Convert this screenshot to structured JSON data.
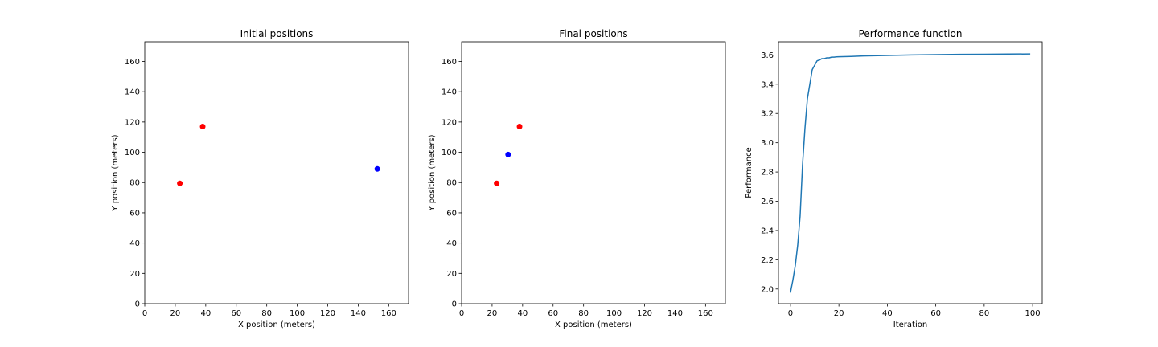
{
  "chart_data": [
    {
      "type": "scatter",
      "title": "Initial positions",
      "xlabel": "X position (meters)",
      "ylabel": "Y position (meters)",
      "xlim": [
        0,
        173
      ],
      "ylim": [
        0,
        173
      ],
      "xticks": [
        0,
        20,
        40,
        60,
        80,
        100,
        120,
        140,
        160
      ],
      "yticks": [
        0,
        20,
        40,
        60,
        80,
        100,
        120,
        140,
        160
      ],
      "grid": false,
      "series": [
        {
          "color": "#ff0000",
          "points": [
            [
              23,
              79.5
            ],
            [
              38,
              117
            ]
          ]
        },
        {
          "color": "#0000ff",
          "points": [
            [
              152.5,
              89
            ]
          ]
        }
      ]
    },
    {
      "type": "scatter",
      "title": "Final positions",
      "xlabel": "X position (meters)",
      "ylabel": "Y position (meters)",
      "xlim": [
        0,
        173
      ],
      "ylim": [
        0,
        173
      ],
      "xticks": [
        0,
        20,
        40,
        60,
        80,
        100,
        120,
        140,
        160
      ],
      "yticks": [
        0,
        20,
        40,
        60,
        80,
        100,
        120,
        140,
        160
      ],
      "grid": false,
      "series": [
        {
          "color": "#ff0000",
          "points": [
            [
              23,
              79.5
            ],
            [
              38,
              117
            ]
          ]
        },
        {
          "color": "#0000ff",
          "points": [
            [
              30.5,
              98.5
            ]
          ]
        }
      ]
    },
    {
      "type": "line",
      "title": "Performance function",
      "xlabel": "Iteration",
      "ylabel": "Performance",
      "xlim": [
        -4.95,
        103.95
      ],
      "ylim": [
        1.9,
        3.69
      ],
      "xticks": [
        0,
        20,
        40,
        60,
        80,
        100
      ],
      "yticks": [
        2.0,
        2.2,
        2.4,
        2.6,
        2.8,
        3.0,
        3.2,
        3.4,
        3.6
      ],
      "ytick_labels": [
        "2.0",
        "2.2",
        "2.4",
        "2.6",
        "2.8",
        "3.0",
        "3.2",
        "3.4",
        "3.6"
      ],
      "grid": false,
      "series": [
        {
          "color": "#1f77b4",
          "x": [
            0,
            1,
            2,
            3,
            4,
            5,
            6,
            7,
            8,
            9,
            10,
            11,
            12,
            13,
            14,
            15,
            16,
            17,
            18,
            19,
            20,
            25,
            30,
            40,
            50,
            60,
            70,
            80,
            90,
            99
          ],
          "y": [
            1.975,
            2.06,
            2.16,
            2.3,
            2.5,
            2.85,
            3.1,
            3.3,
            3.4,
            3.5,
            3.53,
            3.56,
            3.565,
            3.575,
            3.575,
            3.58,
            3.58,
            3.585,
            3.585,
            3.587,
            3.588,
            3.59,
            3.593,
            3.597,
            3.6,
            3.602,
            3.604,
            3.605,
            3.606,
            3.607
          ]
        }
      ]
    }
  ]
}
